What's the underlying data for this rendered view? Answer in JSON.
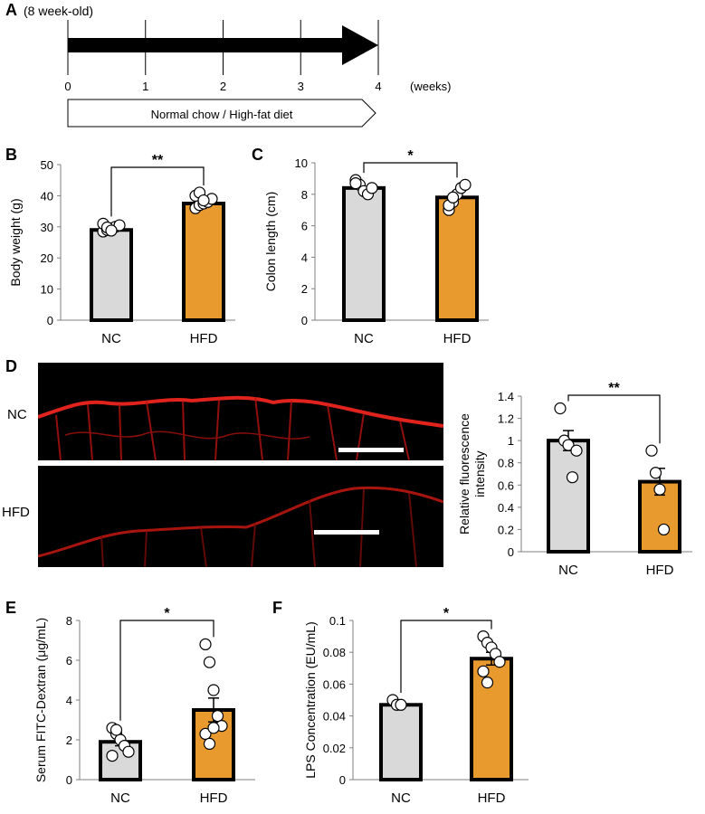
{
  "panel_a": {
    "letter": "A",
    "age_note": "(8 week-old)",
    "weeks": [
      "0",
      "1",
      "2",
      "3",
      "4"
    ],
    "unit": "(weeks)",
    "diet_label": "Normal chow / High-fat diet"
  },
  "panel_d": {
    "letter": "D",
    "image_labels": [
      "NC",
      "HFD"
    ]
  },
  "colors": {
    "nc": "#d9d9d9",
    "hfd": "#e89a2e",
    "stain": "#e0231c"
  },
  "chart_data": [
    {
      "id": "B",
      "type": "bar",
      "categories": [
        "NC",
        "HFD"
      ],
      "values": [
        29,
        37.5
      ],
      "ylabel": "Body weight (g)",
      "ylim": [
        0,
        50
      ],
      "yticks": [
        0,
        10,
        20,
        30,
        40,
        50
      ],
      "sem": [
        0,
        0
      ],
      "points": [
        [
          28.5,
          29,
          29.5,
          30,
          30.5,
          31,
          29.8,
          28.8
        ],
        [
          36,
          37,
          37.5,
          38,
          39,
          40,
          41,
          38.5
        ]
      ],
      "significance": "**"
    },
    {
      "id": "C",
      "type": "bar",
      "categories": [
        "NC",
        "HFD"
      ],
      "values": [
        8.4,
        7.8
      ],
      "ylabel": "Colon length (cm)",
      "ylim": [
        0,
        10
      ],
      "yticks": [
        0,
        2,
        4,
        6,
        8,
        10
      ],
      "sem": [
        0,
        0
      ],
      "points": [
        [
          8.9,
          8.6,
          8.2,
          8,
          8.4,
          8.7
        ],
        [
          7,
          7.5,
          8,
          8.4,
          8.6,
          7.3,
          7.8
        ]
      ],
      "significance": "*"
    },
    {
      "id": "D",
      "type": "bar",
      "categories": [
        "NC",
        "HFD"
      ],
      "values": [
        1.0,
        0.63
      ],
      "ylabel": "Relative fluorescence intensity",
      "ylim": [
        0,
        1.4
      ],
      "yticks": [
        "0",
        "0.2",
        "0.4",
        "0.6",
        "0.8",
        "1",
        "1.2",
        "1.4"
      ],
      "sem": [
        0.09,
        0.12
      ],
      "points": [
        [
          1.29,
          1.0,
          0.96,
          0.67,
          0.91
        ],
        [
          0.91,
          0.71,
          0.56,
          0.2
        ]
      ],
      "significance": "**"
    },
    {
      "id": "E",
      "type": "bar",
      "categories": [
        "NC",
        "HFD"
      ],
      "values": [
        1.9,
        3.5
      ],
      "ylabel": "Serum FITC-Dextran (μg/mL)",
      "ylim": [
        0,
        8
      ],
      "yticks": [
        0,
        2,
        4,
        6,
        8
      ],
      "sem": [
        0.2,
        0.6
      ],
      "points": [
        [
          2.6,
          2.3,
          2.0,
          1.7,
          1.4,
          1.2,
          2.5
        ],
        [
          6.8,
          5.9,
          4.5,
          3.2,
          2.7,
          2.3,
          1.8,
          2.6
        ]
      ],
      "significance": "*"
    },
    {
      "id": "F",
      "type": "bar",
      "categories": [
        "NC",
        "HFD"
      ],
      "values": [
        0.047,
        0.076
      ],
      "ylabel": "LPS Concentration  (EU/mL)",
      "ylim": [
        0,
        0.1
      ],
      "yticks": [
        "0",
        "0.02",
        "0.04",
        "0.06",
        "0.08",
        "0.1"
      ],
      "sem": [
        0.001,
        0.004
      ],
      "points": [
        [
          0.05,
          0.047,
          0.047
        ],
        [
          0.09,
          0.086,
          0.083,
          0.079,
          0.074,
          0.068,
          0.061
        ]
      ],
      "significance": "*"
    }
  ]
}
